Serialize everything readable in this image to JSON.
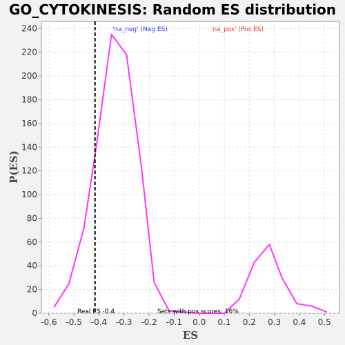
{
  "chart_data": {
    "type": "line",
    "title": "GO_CYTOKINESIS: Random ES distribution",
    "xlabel": "ES",
    "ylabel": "P(ES)",
    "xlim": [
      -0.63,
      0.56
    ],
    "ylim": [
      0,
      246
    ],
    "x_ticks": [
      -0.6,
      -0.5,
      -0.4,
      -0.3,
      -0.2,
      -0.1,
      0.0,
      0.1,
      0.2,
      0.3,
      0.4,
      0.5
    ],
    "x_tick_labels": [
      "-0.6",
      "-0.5",
      "-0.4",
      "-0.3",
      "-0.2",
      "-0.1",
      "0.0",
      "0.1",
      "0.2",
      "0.3",
      "0.4",
      "0.5"
    ],
    "y_ticks": [
      0,
      20,
      40,
      60,
      80,
      100,
      120,
      140,
      160,
      180,
      200,
      220,
      240
    ],
    "y_tick_labels": [
      "0",
      "20",
      "40",
      "60",
      "80",
      "100",
      "120",
      "140",
      "160",
      "180",
      "200",
      "220",
      "240"
    ],
    "grid": true,
    "series": [
      {
        "color": "#ff33ff",
        "x": [
          -0.58,
          -0.52,
          -0.46,
          -0.41,
          -0.35,
          -0.29,
          -0.23,
          -0.18,
          -0.12,
          -0.06,
          0.0,
          0.05,
          0.1,
          0.16,
          0.22,
          0.28,
          0.33,
          0.39,
          0.45,
          0.51
        ],
        "y": [
          5,
          25,
          72,
          142,
          235,
          218,
          122,
          26,
          2,
          1,
          0,
          0,
          0,
          12,
          43,
          58,
          30,
          8,
          6,
          1
        ]
      }
    ],
    "real_es": {
      "x": -0.416,
      "label": "Real ES -0.4",
      "style": "dashed",
      "color": "#000000"
    },
    "annotations": {
      "neg_label": "'na_neg' (Neg ES)",
      "neg_color": "#3333ff",
      "pos_label": "'na_pos' (Pos ES)",
      "pos_color": "#ff3333",
      "pos_scores_text": "Sets with pos scores: 16%"
    },
    "colors": {
      "background": "#f2f2f2",
      "plot_background": "#ffffff",
      "grid": "#dedede"
    }
  }
}
